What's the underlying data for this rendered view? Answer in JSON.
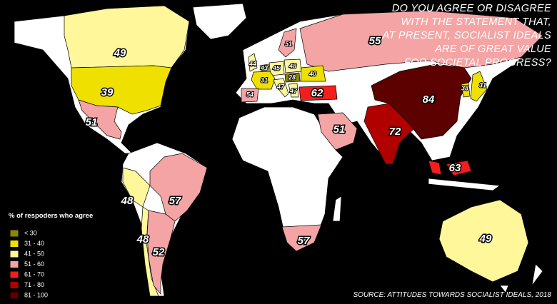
{
  "title_lines": [
    "DO YOU AGREE OR DISAGREE",
    "WITH THE STATEMENT THAT,",
    "AT PRESENT, SOCIALIST IDEALS",
    "ARE OF GREAT VALUE",
    "FOR SOCIETAL PROGRESS?"
  ],
  "legend": {
    "title": "% of respoders who agree",
    "items": [
      {
        "label": "< 30",
        "color": "#8c8600"
      },
      {
        "label": "31 - 40",
        "color": "#efe000"
      },
      {
        "label": "41 - 50",
        "color": "#fff79a"
      },
      {
        "label": "51 - 60",
        "color": "#f4a4a4"
      },
      {
        "label": "61 - 70",
        "color": "#f21d1d"
      },
      {
        "label": "71 - 80",
        "color": "#b00000"
      },
      {
        "label": "81 - 100",
        "color": "#5c0000"
      }
    ]
  },
  "regions": [
    {
      "value": 49,
      "color": "#fff79a"
    },
    {
      "value": 39,
      "color": "#efe000"
    },
    {
      "value": 51,
      "color": "#f4a4a4"
    },
    {
      "value": 48,
      "color": "#fff79a"
    },
    {
      "value": 57,
      "color": "#f4a4a4"
    },
    {
      "value": 48,
      "color": "#fff79a"
    },
    {
      "value": 52,
      "color": "#f4a4a4"
    },
    {
      "value": 51,
      "color": "#f4a4a4"
    },
    {
      "value": 55,
      "color": "#f4a4a4"
    },
    {
      "value": 44,
      "color": "#fff79a"
    },
    {
      "value": 43,
      "color": "#fff79a"
    },
    {
      "value": 45,
      "color": "#fff79a"
    },
    {
      "value": 48,
      "color": "#fff79a"
    },
    {
      "value": 31,
      "color": "#efe000"
    },
    {
      "value": 54,
      "color": "#f4a4a4"
    },
    {
      "value": 28,
      "color": "#8c8600"
    },
    {
      "value": 40,
      "color": "#efe000"
    },
    {
      "value": 47,
      "color": "#fff79a"
    },
    {
      "value": 47,
      "color": "#fff79a"
    },
    {
      "value": 62,
      "color": "#f21d1d"
    },
    {
      "value": 51,
      "color": "#f4a4a4"
    },
    {
      "value": 72,
      "color": "#b00000"
    },
    {
      "value": 84,
      "color": "#5c0000"
    },
    {
      "value": 38,
      "color": "#efe000"
    },
    {
      "value": 31,
      "color": "#efe000"
    },
    {
      "value": 63,
      "color": "#f21d1d"
    },
    {
      "value": 57,
      "color": "#f4a4a4"
    },
    {
      "value": 49,
      "color": "#fff79a"
    }
  ],
  "source": "SOURCE: ATTITUDES TOWARDS SOCIALIST IDEALS, 2018"
}
